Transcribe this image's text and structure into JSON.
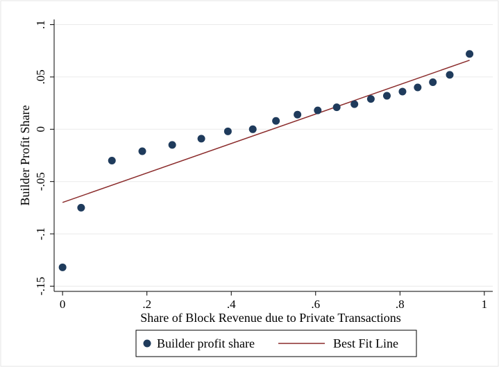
{
  "chart_data": {
    "type": "scatter",
    "title": "",
    "xlabel": "Share of Block Revenue due to Private Transactions",
    "ylabel": "Builder Profit Share",
    "xlim": [
      -0.02,
      1.02
    ],
    "ylim": [
      -0.155,
      0.105
    ],
    "x_ticks": [
      0,
      0.2,
      0.4,
      0.6,
      0.8,
      1
    ],
    "x_tick_labels": [
      "0",
      ".2",
      ".4",
      ".6",
      ".8",
      "1"
    ],
    "y_ticks": [
      0.1,
      0.05,
      0,
      -0.05,
      -0.1,
      -0.15
    ],
    "y_tick_labels": [
      ".1",
      ".05",
      "0",
      "-.05",
      "-.1",
      "-.15"
    ],
    "grid": true,
    "legend_position": "bottom",
    "series": [
      {
        "name": "Builder profit share",
        "kind": "scatter",
        "color": "#1f3b5c",
        "points": [
          [
            0.0,
            -0.132
          ],
          [
            0.044,
            -0.075
          ],
          [
            0.117,
            -0.03
          ],
          [
            0.189,
            -0.021
          ],
          [
            0.26,
            -0.015
          ],
          [
            0.329,
            -0.009
          ],
          [
            0.392,
            -0.002
          ],
          [
            0.451,
            0.0
          ],
          [
            0.506,
            0.008
          ],
          [
            0.557,
            0.014
          ],
          [
            0.605,
            0.018
          ],
          [
            0.65,
            0.021
          ],
          [
            0.692,
            0.024
          ],
          [
            0.731,
            0.029
          ],
          [
            0.769,
            0.032
          ],
          [
            0.806,
            0.036
          ],
          [
            0.842,
            0.04
          ],
          [
            0.878,
            0.045
          ],
          [
            0.918,
            0.052
          ],
          [
            0.965,
            0.072
          ]
        ]
      },
      {
        "name": "Best Fit Line",
        "kind": "line",
        "color": "#8b2c2c",
        "points": [
          [
            0.0,
            -0.07
          ],
          [
            0.965,
            0.066
          ]
        ]
      }
    ]
  }
}
